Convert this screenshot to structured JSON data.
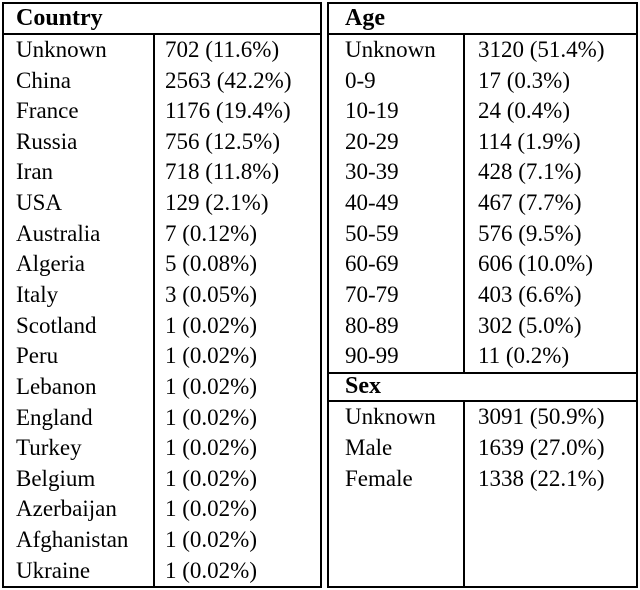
{
  "tables": {
    "country": {
      "header": "Country",
      "rows": [
        {
          "label": "Unknown",
          "value": "702 (11.6%)"
        },
        {
          "label": "China",
          "value": "2563 (42.2%)"
        },
        {
          "label": "France",
          "value": "1176 (19.4%)"
        },
        {
          "label": "Russia",
          "value": "756 (12.5%)"
        },
        {
          "label": "Iran",
          "value": "718 (11.8%)"
        },
        {
          "label": "USA",
          "value": "129 (2.1%)"
        },
        {
          "label": "Australia",
          "value": "7 (0.12%)"
        },
        {
          "label": "Algeria",
          "value": "5 (0.08%)"
        },
        {
          "label": "Italy",
          "value": "3 (0.05%)"
        },
        {
          "label": "Scotland",
          "value": "1 (0.02%)"
        },
        {
          "label": "Peru",
          "value": "1 (0.02%)"
        },
        {
          "label": "Lebanon",
          "value": "1 (0.02%)"
        },
        {
          "label": "England",
          "value": "1 (0.02%)"
        },
        {
          "label": "Turkey",
          "value": "1 (0.02%)"
        },
        {
          "label": "Belgium",
          "value": "1 (0.02%)"
        },
        {
          "label": "Azerbaijan",
          "value": "1 (0.02%)"
        },
        {
          "label": "Afghanistan",
          "value": "1 (0.02%)"
        },
        {
          "label": "Ukraine",
          "value": "1 (0.02%)"
        }
      ]
    },
    "age": {
      "header": "Age",
      "rows": [
        {
          "label": "Unknown",
          "value": "3120 (51.4%)"
        },
        {
          "label": "0-9",
          "value": "17 (0.3%)"
        },
        {
          "label": "10-19",
          "value": "24 (0.4%)"
        },
        {
          "label": "20-29",
          "value": "114 (1.9%)"
        },
        {
          "label": "30-39",
          "value": "428 (7.1%)"
        },
        {
          "label": "40-49",
          "value": "467 (7.7%)"
        },
        {
          "label": "50-59",
          "value": "576 (9.5%)"
        },
        {
          "label": "60-69",
          "value": "606 (10.0%)"
        },
        {
          "label": "70-79",
          "value": "403 (6.6%)"
        },
        {
          "label": "80-89",
          "value": "302 (5.0%)"
        },
        {
          "label": "90-99",
          "value": "11 (0.2%)"
        }
      ]
    },
    "sex": {
      "header": "Sex",
      "rows": [
        {
          "label": "Unknown",
          "value": "3091 (50.9%)"
        },
        {
          "label": "Male",
          "value": "1639 (27.0%)"
        },
        {
          "label": "Female",
          "value": "1338 (22.1%)"
        }
      ]
    }
  },
  "colors": {
    "border": "#000000",
    "background": "#ffffff",
    "text": "#000000"
  }
}
